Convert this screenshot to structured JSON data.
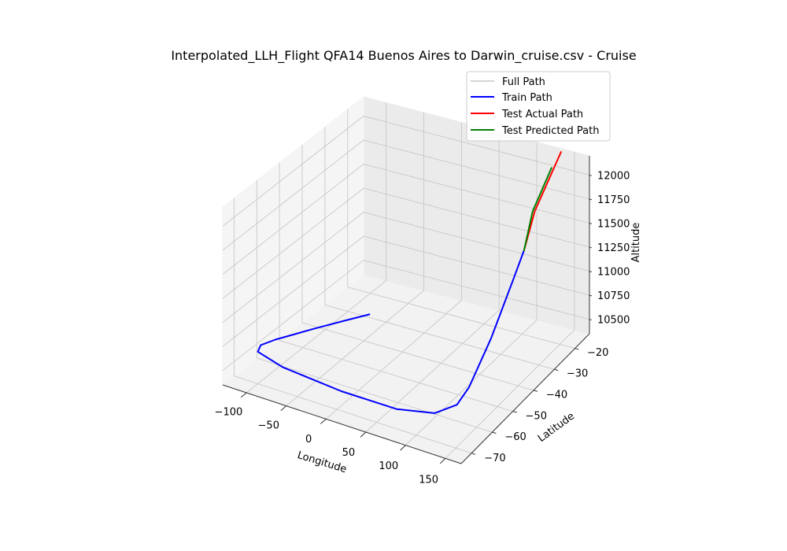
{
  "chart_data": {
    "type": "line3d",
    "title": "Interpolated_LLH_Flight QFA14 Buenos Aires to Darwin_cruise.csv - Cruise",
    "xlabel": "Longitude",
    "ylabel": "Latitude",
    "zlabel": "Altitude",
    "xlim": [
      -130,
      170
    ],
    "ylim": [
      -75,
      -13
    ],
    "zlim": [
      10350,
      12200
    ],
    "x_ticks": [
      -100,
      -50,
      0,
      50,
      100,
      150
    ],
    "y_ticks": [
      -70,
      -60,
      -50,
      -40,
      -30,
      -20
    ],
    "z_ticks": [
      10500,
      10750,
      11000,
      11250,
      11500,
      11750,
      12000
    ],
    "grid": true,
    "legend_position": "top-right",
    "series": [
      {
        "name": "Full Path",
        "color": "#d3d3d3",
        "points": [
          [
            -58.5,
            -34.6,
            10500
          ],
          [
            -75,
            -40,
            10500
          ],
          [
            -95,
            -47,
            10500
          ],
          [
            -118,
            -56,
            10500
          ],
          [
            -125,
            -60,
            10500
          ],
          [
            -120,
            -63,
            10500
          ],
          [
            -80,
            -66,
            10500
          ],
          [
            0,
            -68,
            10500
          ],
          [
            70,
            -68,
            10500
          ],
          [
            110,
            -65,
            10500
          ],
          [
            125,
            -60,
            10520
          ],
          [
            127,
            -55,
            10600
          ],
          [
            128.5,
            -45,
            10900
          ],
          [
            130,
            -35,
            11300
          ],
          [
            130.5,
            -30,
            11500
          ],
          [
            130.8,
            -25,
            11800
          ],
          [
            130.9,
            -12.5,
            12150
          ]
        ]
      },
      {
        "name": "Train Path",
        "color": "#0000ff",
        "points": [
          [
            -58.5,
            -34.6,
            10500
          ],
          [
            -75,
            -40,
            10500
          ],
          [
            -95,
            -47,
            10500
          ],
          [
            -118,
            -56,
            10500
          ],
          [
            -125,
            -60,
            10500
          ],
          [
            -120,
            -63,
            10500
          ],
          [
            -80,
            -66,
            10500
          ],
          [
            0,
            -68,
            10500
          ],
          [
            70,
            -68,
            10500
          ],
          [
            110,
            -65,
            10500
          ],
          [
            125,
            -60,
            10520
          ],
          [
            127,
            -55,
            10600
          ],
          [
            128.5,
            -45,
            10900
          ],
          [
            130,
            -35,
            11300
          ],
          [
            130.5,
            -30,
            11500
          ]
        ]
      },
      {
        "name": "Test Actual Path",
        "color": "#ff0000",
        "points": [
          [
            130.5,
            -30,
            11500
          ],
          [
            130.8,
            -25,
            11800
          ],
          [
            130.9,
            -12.5,
            12150
          ]
        ]
      },
      {
        "name": "Test Predicted Path",
        "color": "#008000",
        "points": [
          [
            130.5,
            -30,
            11500
          ],
          [
            130.7,
            -26,
            11820
          ],
          [
            130.8,
            -17,
            12080
          ]
        ]
      }
    ]
  }
}
